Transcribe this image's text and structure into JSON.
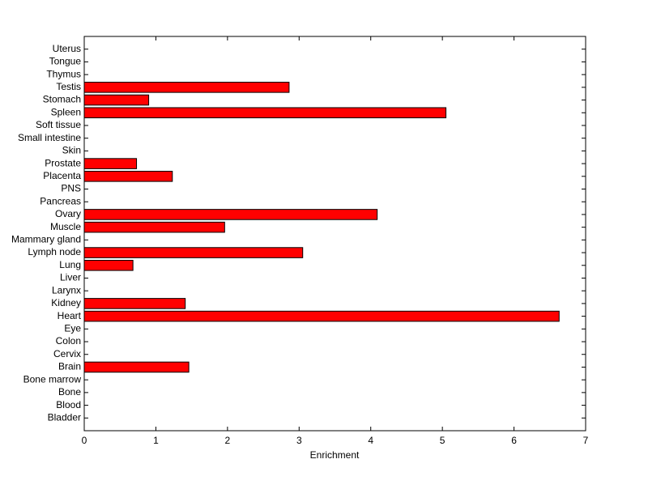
{
  "chart_data": {
    "type": "barh",
    "xlabel": "Enrichment",
    "categories": [
      "Bladder",
      "Blood",
      "Bone",
      "Bone marrow",
      "Brain",
      "Cervix",
      "Colon",
      "Eye",
      "Heart",
      "Kidney",
      "Larynx",
      "Liver",
      "Lung",
      "Lymph node",
      "Mammary gland",
      "Muscle",
      "Ovary",
      "Pancreas",
      "PNS",
      "Placenta",
      "Prostate",
      "Skin",
      "Small intestine",
      "Soft tissue",
      "Spleen",
      "Stomach",
      "Testis",
      "Thymus",
      "Tongue",
      "Uterus"
    ],
    "values": [
      0,
      0,
      0,
      0,
      1.46,
      0,
      0,
      0,
      6.63,
      1.41,
      0,
      0,
      0.68,
      3.05,
      0,
      1.96,
      4.09,
      0,
      0,
      1.23,
      0.73,
      0,
      0,
      0,
      5.05,
      0.9,
      2.86,
      0,
      0,
      0
    ],
    "color": "#ff0000",
    "xlim": [
      0,
      7
    ],
    "xticks": [
      0,
      1,
      2,
      3,
      4,
      5,
      6,
      7
    ]
  }
}
